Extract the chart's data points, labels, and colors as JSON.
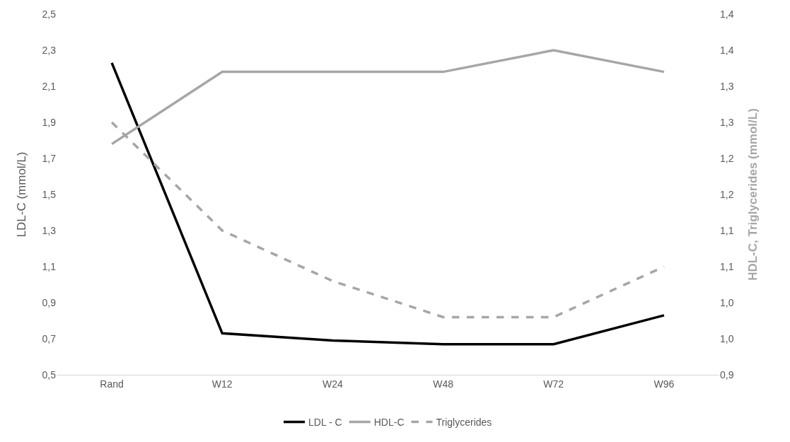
{
  "chart_data": {
    "type": "line",
    "categories": [
      "Rand",
      "W12",
      "W24",
      "W48",
      "W72",
      "W96"
    ],
    "series": [
      {
        "name": "LDL - C",
        "color": "#000000",
        "values": [
          2.23,
          0.73,
          0.69,
          0.67,
          0.67,
          0.83
        ],
        "line_style": "solid"
      },
      {
        "name": "HDL-C",
        "color": "#a6a6a6",
        "values": [
          1.22,
          1.32,
          1.32,
          1.32,
          1.35,
          1.32
        ],
        "axis": "y2",
        "line_style": "solid"
      },
      {
        "name": "Triglycerides",
        "color": "#a6a6a6",
        "values": [
          1.25,
          1.1,
          1.03,
          0.98,
          0.98,
          1.05
        ],
        "axis": "y2",
        "line_style": "dashed"
      }
    ],
    "ylabel": "LDL-C (mmol/L)",
    "y2label": "HDL-C, Triglycerides (mmol/L)",
    "ylim": [
      0.5,
      2.5
    ],
    "yticks": [
      {
        "value": 0.5,
        "label": "0,5"
      },
      {
        "value": 0.7,
        "label": "0,7"
      },
      {
        "value": 0.9,
        "label": "0,9"
      },
      {
        "value": 1.1,
        "label": "1,1"
      },
      {
        "value": 1.3,
        "label": "1,3"
      },
      {
        "value": 1.5,
        "label": "1,5"
      },
      {
        "value": 1.7,
        "label": "1,7"
      },
      {
        "value": 1.9,
        "label": "1,9"
      },
      {
        "value": 2.1,
        "label": "2,1"
      },
      {
        "value": 2.3,
        "label": "2,3"
      },
      {
        "value": 2.5,
        "label": "2,5"
      }
    ],
    "y2lim": [
      0.9,
      1.4
    ],
    "y2ticks": [
      {
        "value": 0.9,
        "label": "0,9"
      },
      {
        "value": 0.95,
        "label": "1,0"
      },
      {
        "value": 1.0,
        "label": "1,0"
      },
      {
        "value": 1.05,
        "label": "1,1"
      },
      {
        "value": 1.1,
        "label": "1,1"
      },
      {
        "value": 1.15,
        "label": "1,2"
      },
      {
        "value": 1.2,
        "label": "1,2"
      },
      {
        "value": 1.25,
        "label": "1,3"
      },
      {
        "value": 1.3,
        "label": "1,3"
      },
      {
        "value": 1.35,
        "label": "1,4"
      },
      {
        "value": 1.4,
        "label": "1,4"
      }
    ],
    "grid": false,
    "legend": "bottom",
    "marker": "none"
  }
}
